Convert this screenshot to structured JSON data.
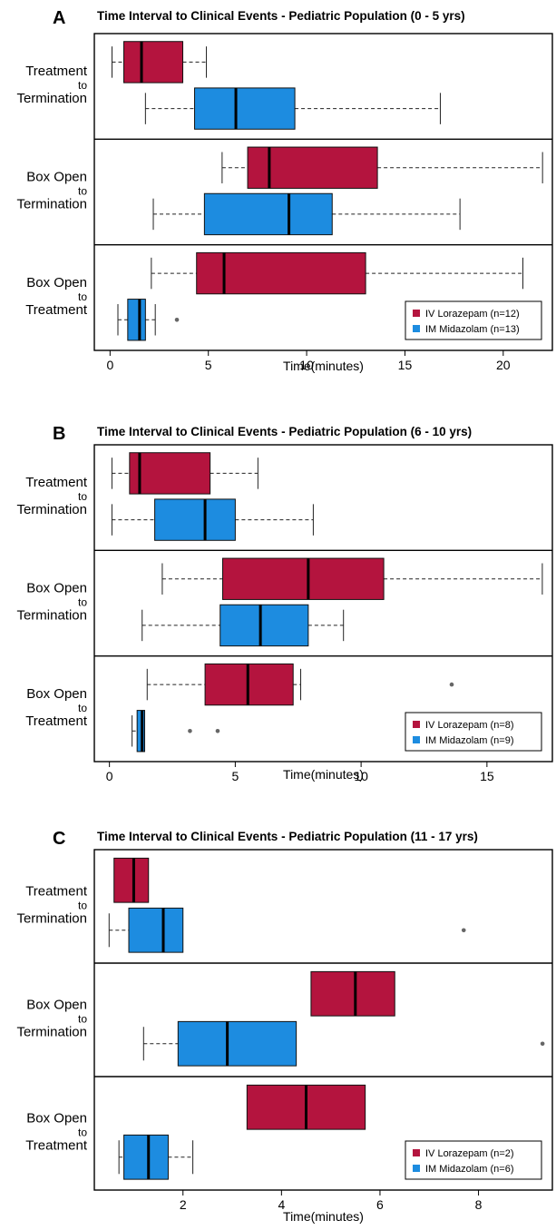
{
  "colors": {
    "iv": "#b4143e",
    "im": "#1d8ce0",
    "text": "#000000",
    "outlier": "#666666"
  },
  "chart_data": [
    {
      "type": "boxplot",
      "panel_label": "A",
      "title": "Time Interval to Clinical Events - Pediatric Population (0 - 5 yrs)",
      "xlabel": "Time(minutes)",
      "xlim": [
        -0.8,
        22.5
      ],
      "xticks": [
        0,
        5,
        10,
        15,
        20
      ],
      "groups": [
        {
          "label_lines": [
            "Treatment",
            "to",
            "Termination"
          ],
          "boxes": [
            {
              "series": "IV Lorazepam",
              "whisker_low": 0.1,
              "q1": 0.7,
              "median": 1.6,
              "q3": 3.7,
              "whisker_high": 4.9,
              "outliers": []
            },
            {
              "series": "IM Midazolam",
              "whisker_low": 1.8,
              "q1": 4.3,
              "median": 6.4,
              "q3": 9.4,
              "whisker_high": 16.8,
              "outliers": []
            }
          ]
        },
        {
          "label_lines": [
            "Box Open",
            "to",
            "Termination"
          ],
          "boxes": [
            {
              "series": "IV Lorazepam",
              "whisker_low": 5.7,
              "q1": 7.0,
              "median": 8.1,
              "q3": 13.6,
              "whisker_high": 22.0,
              "outliers": []
            },
            {
              "series": "IM Midazolam",
              "whisker_low": 2.2,
              "q1": 4.8,
              "median": 9.1,
              "q3": 11.3,
              "whisker_high": 17.8,
              "outliers": []
            }
          ]
        },
        {
          "label_lines": [
            "Box Open",
            "to",
            "Treatment"
          ],
          "boxes": [
            {
              "series": "IV Lorazepam",
              "whisker_low": 2.1,
              "q1": 4.4,
              "median": 5.8,
              "q3": 13.0,
              "whisker_high": 21.0,
              "outliers": []
            },
            {
              "series": "IM Midazolam",
              "whisker_low": 0.4,
              "q1": 0.9,
              "median": 1.5,
              "q3": 1.8,
              "whisker_high": 2.3,
              "outliers": [
                3.4
              ]
            }
          ]
        }
      ],
      "legend": [
        "IV Lorazepam (n=12)",
        "IM Midazolam (n=13)"
      ],
      "legend_position": "bottom-right"
    },
    {
      "type": "boxplot",
      "panel_label": "B",
      "title": "Time Interval to Clinical Events - Pediatric Population (6 - 10 yrs)",
      "xlabel": "Time(minutes)",
      "xlim": [
        -0.6,
        17.6
      ],
      "xticks": [
        0,
        5,
        10,
        15
      ],
      "groups": [
        {
          "label_lines": [
            "Treatment",
            "to",
            "Termination"
          ],
          "boxes": [
            {
              "series": "IV Lorazepam",
              "whisker_low": 0.1,
              "q1": 0.8,
              "median": 1.2,
              "q3": 4.0,
              "whisker_high": 5.9,
              "outliers": []
            },
            {
              "series": "IM Midazolam",
              "whisker_low": 0.1,
              "q1": 1.8,
              "median": 3.8,
              "q3": 5.0,
              "whisker_high": 8.1,
              "outliers": []
            }
          ]
        },
        {
          "label_lines": [
            "Box Open",
            "to",
            "Termination"
          ],
          "boxes": [
            {
              "series": "IV Lorazepam",
              "whisker_low": 2.1,
              "q1": 4.5,
              "median": 7.9,
              "q3": 10.9,
              "whisker_high": 17.2,
              "outliers": []
            },
            {
              "series": "IM Midazolam",
              "whisker_low": 1.3,
              "q1": 4.4,
              "median": 6.0,
              "q3": 7.9,
              "whisker_high": 9.3,
              "outliers": []
            }
          ]
        },
        {
          "label_lines": [
            "Box Open",
            "to",
            "Treatment"
          ],
          "boxes": [
            {
              "series": "IV Lorazepam",
              "whisker_low": 1.5,
              "q1": 3.8,
              "median": 5.5,
              "q3": 7.3,
              "whisker_high": 7.6,
              "outliers": [
                13.6
              ]
            },
            {
              "series": "IM Midazolam",
              "whisker_low": 0.9,
              "q1": 1.1,
              "median": 1.3,
              "q3": 1.4,
              "whisker_high": 1.4,
              "outliers": [
                3.2,
                4.3
              ]
            }
          ]
        }
      ],
      "legend": [
        "IV Lorazepam (n=8)",
        "IM Midazolam (n=9)"
      ],
      "legend_position": "bottom-right"
    },
    {
      "type": "boxplot",
      "panel_label": "C",
      "title": "Time Interval to Clinical Events - Pediatric Population (11 - 17 yrs)",
      "xlabel": "Time(minutes)",
      "xlim": [
        0.2,
        9.5
      ],
      "xticks": [
        2,
        4,
        6,
        8
      ],
      "groups": [
        {
          "label_lines": [
            "Treatment",
            "to",
            "Termination"
          ],
          "boxes": [
            {
              "series": "IV Lorazepam",
              "whisker_low": 0.6,
              "q1": 0.6,
              "median": 1.0,
              "q3": 1.3,
              "whisker_high": 1.3,
              "outliers": []
            },
            {
              "series": "IM Midazolam",
              "whisker_low": 0.5,
              "q1": 0.9,
              "median": 1.6,
              "q3": 2.0,
              "whisker_high": 2.0,
              "outliers": [
                7.7
              ]
            }
          ]
        },
        {
          "label_lines": [
            "Box Open",
            "to",
            "Termination"
          ],
          "boxes": [
            {
              "series": "IV Lorazepam",
              "whisker_low": 4.6,
              "q1": 4.6,
              "median": 5.5,
              "q3": 6.3,
              "whisker_high": 6.3,
              "outliers": []
            },
            {
              "series": "IM Midazolam",
              "whisker_low": 1.2,
              "q1": 1.9,
              "median": 2.9,
              "q3": 4.3,
              "whisker_high": 4.3,
              "outliers": [
                9.3
              ]
            }
          ]
        },
        {
          "label_lines": [
            "Box Open",
            "to",
            "Treatment"
          ],
          "boxes": [
            {
              "series": "IV Lorazepam",
              "whisker_low": 3.3,
              "q1": 3.3,
              "median": 4.5,
              "q3": 5.7,
              "whisker_high": 5.7,
              "outliers": []
            },
            {
              "series": "IM Midazolam",
              "whisker_low": 0.7,
              "q1": 0.8,
              "median": 1.3,
              "q3": 1.7,
              "whisker_high": 2.2,
              "outliers": []
            }
          ]
        }
      ],
      "legend": [
        "IV Lorazepam (n=2)",
        "IM Midazolam (n=6)"
      ],
      "legend_position": "bottom-right"
    }
  ]
}
